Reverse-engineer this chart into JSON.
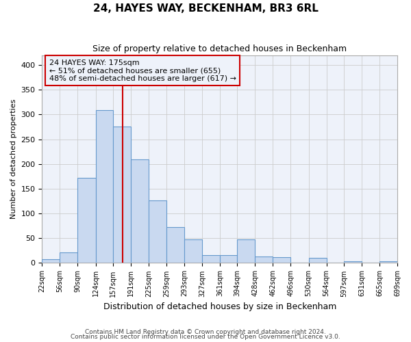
{
  "title": "24, HAYES WAY, BECKENHAM, BR3 6RL",
  "subtitle": "Size of property relative to detached houses in Beckenham",
  "xlabel": "Distribution of detached houses by size in Beckenham",
  "ylabel": "Number of detached properties",
  "footnote1": "Contains HM Land Registry data © Crown copyright and database right 2024.",
  "footnote2": "Contains public sector information licensed under the Open Government Licence v3.0.",
  "bin_edges": [
    22,
    56,
    90,
    124,
    157,
    191,
    225,
    259,
    293,
    327,
    361,
    394,
    428,
    462,
    496,
    530,
    564,
    597,
    631,
    665,
    699
  ],
  "bin_labels": [
    "22sqm",
    "56sqm",
    "90sqm",
    "124sqm",
    "157sqm",
    "191sqm",
    "225sqm",
    "259sqm",
    "293sqm",
    "327sqm",
    "361sqm",
    "394sqm",
    "428sqm",
    "462sqm",
    "496sqm",
    "530sqm",
    "564sqm",
    "597sqm",
    "631sqm",
    "665sqm",
    "699sqm"
  ],
  "bar_heights": [
    7,
    22,
    172,
    309,
    276,
    210,
    126,
    73,
    48,
    16,
    16,
    48,
    13,
    11,
    0,
    10,
    0,
    3,
    0,
    3
  ],
  "bar_facecolor": "#c9d9f0",
  "bar_edgecolor": "#6699cc",
  "vline_x": 175,
  "vline_color": "#cc0000",
  "annotation_title": "24 HAYES WAY: 175sqm",
  "annotation_line1": "← 51% of detached houses are smaller (655)",
  "annotation_line2": "48% of semi-detached houses are larger (617) →",
  "annotation_box_color": "#cc0000",
  "ylim": [
    0,
    420
  ],
  "yticks": [
    0,
    50,
    100,
    150,
    200,
    250,
    300,
    350,
    400
  ],
  "grid_color": "#cccccc",
  "bg_color": "#ffffff",
  "plot_bg_color": "#eef2fa"
}
